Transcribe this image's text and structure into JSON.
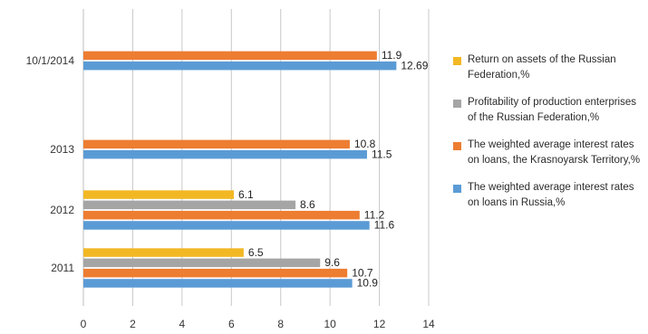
{
  "chart_data": {
    "type": "bar",
    "orientation": "horizontal",
    "categories": [
      "10/1/2014",
      "2013",
      "2012",
      "2011"
    ],
    "series": [
      {
        "name": "Return on assets of the Russian Federation,%",
        "color": "#f2b824",
        "values": [
          null,
          null,
          6.1,
          6.5
        ]
      },
      {
        "name": "Profitability of production enterprises of the Russian Federation,%",
        "color": "#a5a5a5",
        "values": [
          null,
          null,
          8.6,
          9.6
        ]
      },
      {
        "name": "The weighted average interest rates on loans, the Krasnoyarsk Territory,%",
        "color": "#ed7d31",
        "values": [
          11.9,
          10.8,
          11.2,
          10.7
        ]
      },
      {
        "name": "The weighted average interest rates on loans in Russia,%",
        "color": "#5b9bd5",
        "values": [
          12.69,
          11.5,
          11.6,
          10.9
        ]
      }
    ],
    "data_labels": true,
    "xlim": [
      0,
      14
    ],
    "xticks": [
      0,
      2,
      4,
      6,
      8,
      10,
      12,
      14
    ],
    "grid": true,
    "legend_position": "right",
    "title": "",
    "xlabel": "",
    "ylabel": ""
  }
}
